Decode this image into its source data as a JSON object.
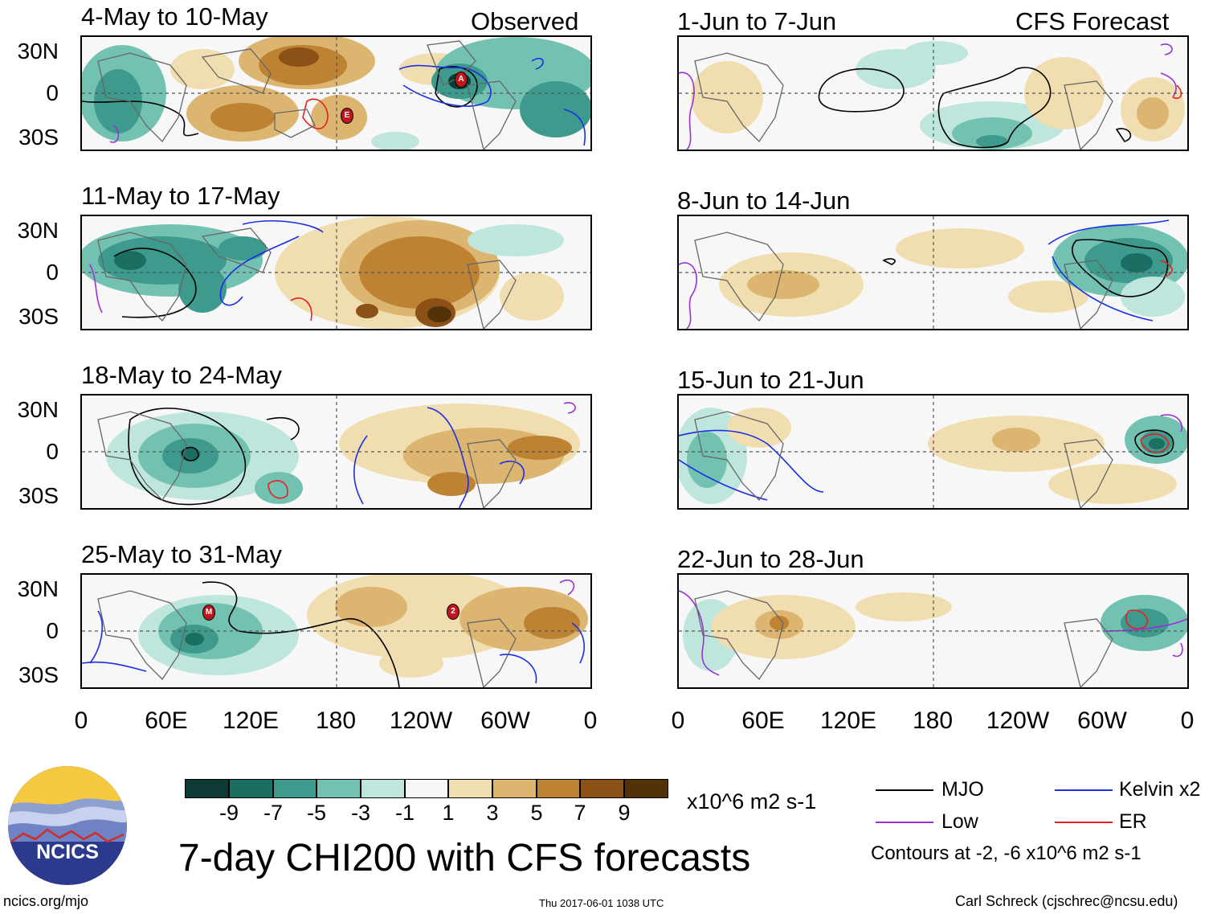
{
  "observed_label": "Observed",
  "forecast_label": "CFS Forecast",
  "observed_panels": [
    {
      "title": "4-May to 10-May"
    },
    {
      "title": "11-May to 17-May"
    },
    {
      "title": "18-May to 24-May"
    },
    {
      "title": "25-May to 31-May"
    }
  ],
  "forecast_panels": [
    {
      "title": "1-Jun to 7-Jun"
    },
    {
      "title": "8-Jun to 14-Jun"
    },
    {
      "title": "15-Jun to 21-Jun"
    },
    {
      "title": "22-Jun to 28-Jun"
    }
  ],
  "lat_labels": [
    "30N",
    "0",
    "30S"
  ],
  "lon_labels": [
    "0",
    "60E",
    "120E",
    "180",
    "120W",
    "60W",
    "0"
  ],
  "colorbar": {
    "units": "x10^6 m2 s-1",
    "ticks": [
      "-9",
      "-7",
      "-5",
      "-3",
      "-1",
      "1",
      "3",
      "5",
      "7",
      "9"
    ],
    "colors": [
      "#0d3b34",
      "#1b6e62",
      "#3d9a8c",
      "#73c2b1",
      "#bfe6dd",
      "#f7f7f7",
      "#f1deb0",
      "#dcb571",
      "#bd8232",
      "#8b5117",
      "#543208"
    ]
  },
  "legend": {
    "items": [
      {
        "label": "MJO",
        "color": "#000000"
      },
      {
        "label": "Kelvin x2",
        "color": "#1a2ee6"
      },
      {
        "label": "Low",
        "color": "#9b30d9"
      },
      {
        "label": "ER",
        "color": "#e62020"
      }
    ],
    "contours_note": "Contours at -2, -6 x10^6 m2 s-1"
  },
  "main_title": "7-day CHI200 with CFS forecasts",
  "logo_text": "NCICS",
  "url": "ncics.org/mjo",
  "timestamp": "Thu 2017-06-01 1038 UTC",
  "author": "Carl Schreck (cjschrec@ncsu.edu)",
  "storm_markers": [
    "A",
    "E",
    "M",
    "2"
  ]
}
